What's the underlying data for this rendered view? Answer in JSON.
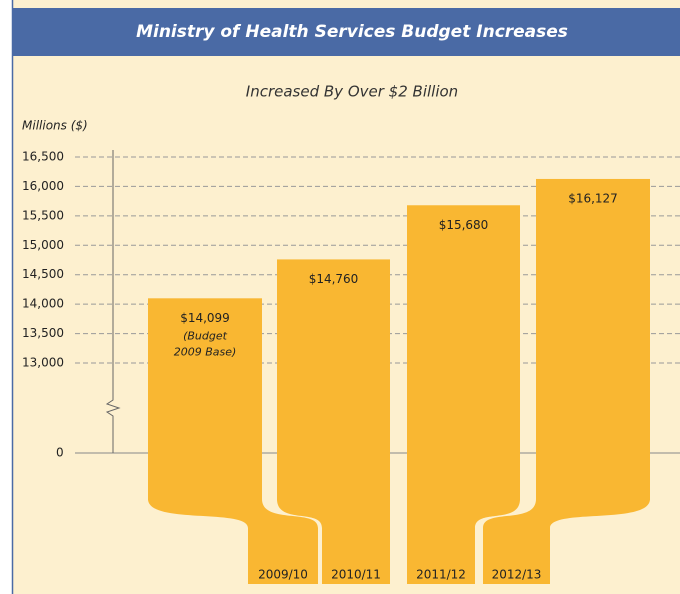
{
  "chart_data": {
    "type": "bar",
    "title": "Ministry of Health Services Budget Increases",
    "subtitle": "Increased By Over $2 Billion",
    "y_axis_label": "Millions ($)",
    "categories": [
      "2009/10",
      "2010/11",
      "2011/12",
      "2012/13"
    ],
    "values": [
      14099,
      14760,
      15680,
      16127
    ],
    "value_labels": [
      "$14,099",
      "$14,760",
      "$15,680",
      "$16,127"
    ],
    "annotation": [
      "(Budget",
      "2009 Base)"
    ],
    "color": "#f9b732",
    "ylim": [
      13000,
      16500
    ],
    "yticks": [
      0,
      {
        "value": 13000,
        "label": "13,000"
      },
      {
        "value": 13500,
        "label": "13,500"
      },
      {
        "value": 14000,
        "label": "14,000"
      },
      {
        "value": 14500,
        "label": "14,500"
      },
      {
        "value": 15000,
        "label": "15,000"
      },
      {
        "value": 15500,
        "label": "15,500"
      },
      {
        "value": 16000,
        "label": "16,000"
      },
      {
        "value": 16500,
        "label": "16,500"
      }
    ],
    "grid": true
  }
}
